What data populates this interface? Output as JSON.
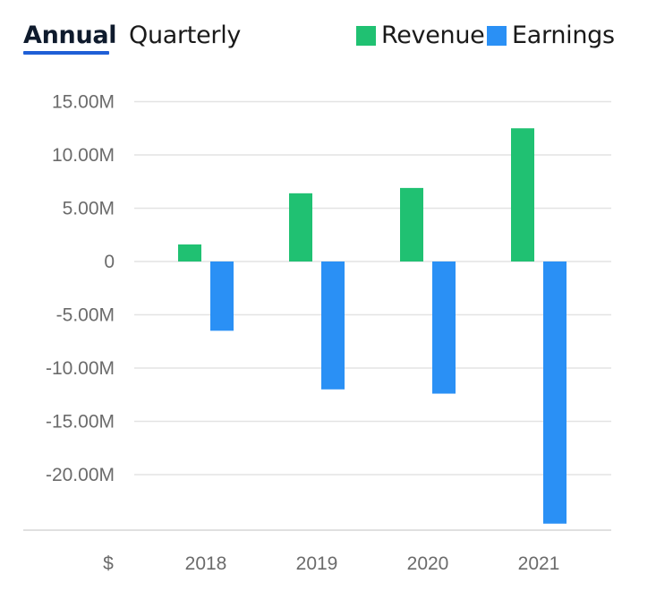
{
  "tabs": [
    {
      "label": "Annual",
      "active": true
    },
    {
      "label": "Quarterly",
      "active": false
    }
  ],
  "legend": [
    {
      "label": "Revenue",
      "color": "#20c172"
    },
    {
      "label": "Earnings",
      "color": "#2a90f5"
    }
  ],
  "currency_label": "$",
  "chart_data": {
    "type": "bar",
    "categories": [
      "2018",
      "2019",
      "2020",
      "2021"
    ],
    "series": [
      {
        "name": "Revenue",
        "values": [
          1.6,
          6.4,
          6.9,
          12.5
        ],
        "color": "#20c172"
      },
      {
        "name": "Earnings",
        "values": [
          -6.5,
          -12.0,
          -12.4,
          -24.6
        ],
        "color": "#2a90f5"
      }
    ],
    "units": "M",
    "ylim": [
      -25,
      15
    ],
    "yticks": [
      15,
      10,
      5,
      0,
      -5,
      -10,
      -15,
      -20
    ],
    "ytick_labels": [
      "15.00M",
      "10.00M",
      "5.00M",
      "0",
      "-5.00M",
      "-10.00M",
      "-15.00M",
      "-20.00M"
    ],
    "grid": true,
    "legend_position": "top-right"
  }
}
